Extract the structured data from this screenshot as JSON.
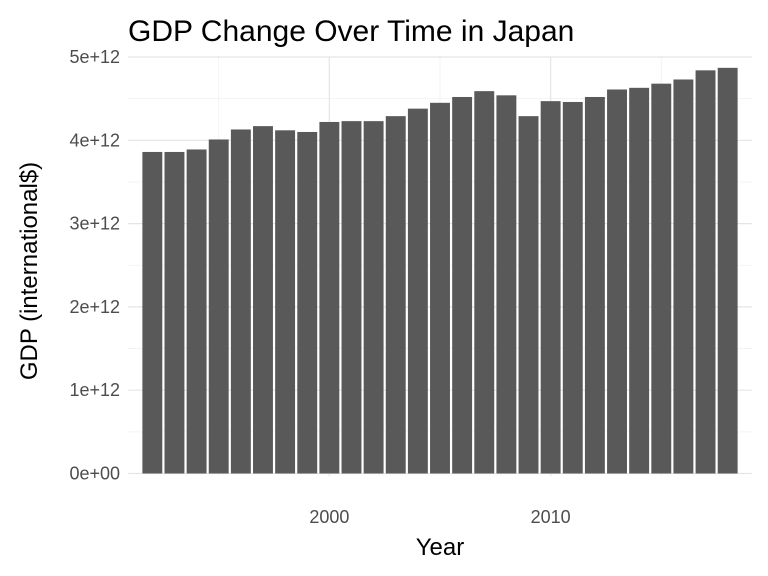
{
  "chart_data": {
    "type": "bar",
    "title": "GDP Change Over Time in Japan",
    "xlabel": "Year",
    "ylabel": "GDP (international$)",
    "x": [
      1992,
      1993,
      1994,
      1995,
      1996,
      1997,
      1998,
      1999,
      2000,
      2001,
      2002,
      2003,
      2004,
      2005,
      2006,
      2007,
      2008,
      2009,
      2010,
      2011,
      2012,
      2013,
      2014,
      2015,
      2016,
      2017,
      2018
    ],
    "values": [
      3860000000000.0,
      3860000000000.0,
      3890000000000.0,
      4010000000000.0,
      4130000000000.0,
      4170000000000.0,
      4120000000000.0,
      4100000000000.0,
      4220000000000.0,
      4230000000000.0,
      4230000000000.0,
      4290000000000.0,
      4380000000000.0,
      4450000000000.0,
      4520000000000.0,
      4590000000000.0,
      4540000000000.0,
      4290000000000.0,
      4470000000000.0,
      4460000000000.0,
      4520000000000.0,
      4610000000000.0,
      4630000000000.0,
      4680000000000.0,
      4730000000000.0,
      4840000000000.0,
      4870000000000.0
    ],
    "xlim": [
      1990.9,
      2019.1
    ],
    "ylim": [
      -30000000000.0,
      5000000000000.0
    ],
    "x_ticks": [
      2000,
      2010
    ],
    "x_tick_labels": [
      "2000",
      "2010"
    ],
    "y_ticks": [
      0,
      1000000000000.0,
      2000000000000.0,
      3000000000000.0,
      4000000000000.0,
      5000000000000.0
    ],
    "y_tick_labels": [
      "0e+00",
      "1e+12",
      "2e+12",
      "3e+12",
      "4e+12",
      "5e+12"
    ],
    "bar_color": "#595959",
    "grid": true,
    "legend": "none"
  }
}
